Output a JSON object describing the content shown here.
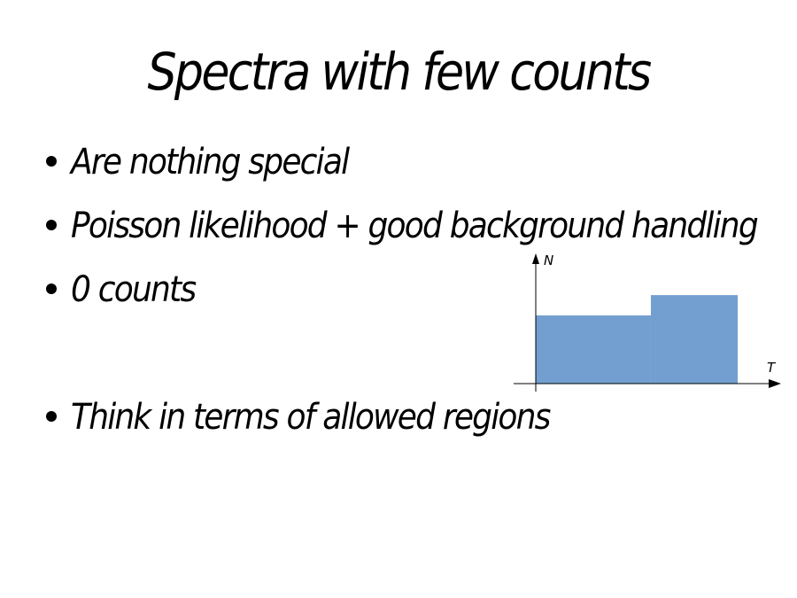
{
  "slide": {
    "title": "Spectra with few counts",
    "bullets": [
      "Are nothing special",
      "Poisson likelihood + good background handling",
      "0 counts",
      "Think in terms of allowed regions"
    ]
  },
  "diagram": {
    "y_axis_label": "N",
    "x_axis_label": "T",
    "fill_color": "#729fcf",
    "axis_color": "#000000",
    "steps": [
      {
        "from": 0,
        "to": 0.57,
        "level": 0.57
      },
      {
        "from": 0.57,
        "to": 1.0,
        "level": 0.74
      }
    ]
  }
}
